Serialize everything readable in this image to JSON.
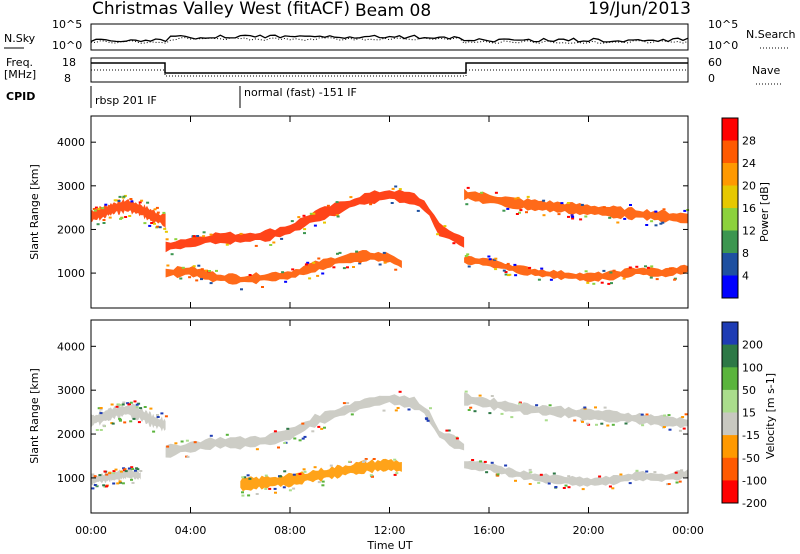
{
  "header": {
    "title": "Christmas Valley West (fitACF)",
    "beam": "Beam 08",
    "date": "19/Jun/2013"
  },
  "status_panels": {
    "nsky_label": "N.Sky",
    "nsky_ticks": [
      "10^5",
      "10^0"
    ],
    "nsearch_label": "N.Search",
    "nsearch_ticks": [
      "10^5",
      "10^0"
    ],
    "freq_label_line1": "Freq.",
    "freq_label_line2": "[MHz]",
    "freq_ticks": [
      "18",
      "8"
    ],
    "nave_label": "Nave",
    "nave_ticks": [
      "60",
      "0"
    ],
    "cpid_label": "CPID",
    "cpid_segments": [
      {
        "label": "rbsp 201 IF",
        "start_hour": 0.0
      },
      {
        "label": "normal (fast) -151 IF",
        "start_hour": 6.0
      }
    ]
  },
  "chart_data": [
    {
      "type": "heatmap",
      "name": "power",
      "ylabel": "Slant Range [km]",
      "yticks": [
        1000,
        2000,
        3000,
        4000
      ],
      "ylim": [
        200,
        4600
      ],
      "xlim": [
        0,
        24
      ],
      "colorbar_label": "Power [dB]",
      "colorbar_ticks": [
        "28",
        "24",
        "20",
        "16",
        "12",
        "8",
        "4"
      ],
      "colorbar_colors": [
        "#ff0000",
        "#ff5a00",
        "#ff9900",
        "#e6c800",
        "#8cd23c",
        "#3c9650",
        "#1e50a0",
        "#0000ff"
      ],
      "bands": [
        {
          "x": [
            0.0,
            0.5,
            1.0,
            1.5,
            2.0,
            2.5,
            3.0
          ],
          "y": [
            2300,
            2400,
            2500,
            2550,
            2450,
            2300,
            2200
          ],
          "w": 260,
          "c": "#ff4000"
        },
        {
          "x": [
            3.0,
            4.0,
            5.0,
            6.0,
            7.0,
            8.0,
            9.0,
            10.0,
            11.0,
            12.0,
            13.0,
            13.5,
            14.0,
            15.0
          ],
          "y": [
            1600,
            1700,
            1800,
            1800,
            1850,
            2000,
            2300,
            2500,
            2700,
            2800,
            2700,
            2500,
            2000,
            1700
          ],
          "w": 230,
          "c": "#ff3000"
        },
        {
          "x": [
            3.0,
            4.0,
            5.0,
            6.0,
            7.0,
            8.0,
            9.0,
            10.0,
            11.0,
            12.0,
            12.5
          ],
          "y": [
            1000,
            1050,
            900,
            850,
            900,
            950,
            1150,
            1300,
            1400,
            1350,
            1200
          ],
          "w": 200,
          "c": "#ff5a00"
        },
        {
          "x": [
            15.0,
            16.0,
            17.0,
            18.0,
            19.0,
            20.0,
            21.0,
            22.0,
            23.0,
            24.0
          ],
          "y": [
            2800,
            2700,
            2600,
            2550,
            2500,
            2450,
            2400,
            2350,
            2300,
            2250
          ],
          "w": 220,
          "c": "#ff5a00"
        },
        {
          "x": [
            15.0,
            16.0,
            17.0,
            18.0,
            19.0,
            20.0,
            21.0,
            22.0,
            23.0,
            24.0
          ],
          "y": [
            1300,
            1250,
            1100,
            1000,
            950,
            900,
            950,
            1050,
            1000,
            1100
          ],
          "w": 170,
          "c": "#ff5a00"
        }
      ]
    },
    {
      "type": "heatmap",
      "name": "velocity",
      "ylabel": "Slant Range [km]",
      "yticks": [
        1000,
        2000,
        3000,
        4000
      ],
      "ylim": [
        200,
        4600
      ],
      "xlim": [
        0,
        24
      ],
      "colorbar_label": "Velocity [m s-1]",
      "colorbar_ticks": [
        "200",
        "100",
        "50",
        "15",
        "-15",
        "-50",
        "-100",
        "-200"
      ],
      "colorbar_colors": [
        "#1e3cb4",
        "#2d7846",
        "#5ab43c",
        "#aadc8c",
        "#c8c8c0",
        "#ff9900",
        "#ff5a00",
        "#ff0000"
      ],
      "bands": [
        {
          "x": [
            0.0,
            0.5,
            1.0,
            1.5,
            2.0,
            2.5,
            3.0
          ],
          "y": [
            2300,
            2400,
            2500,
            2550,
            2450,
            2300,
            2200
          ],
          "w": 260,
          "c": "#c8c8c0"
        },
        {
          "x": [
            3.0,
            4.0,
            5.0,
            6.0,
            7.0,
            8.0,
            9.0,
            10.0,
            11.0,
            12.0,
            13.0,
            13.5,
            14.0,
            15.0
          ],
          "y": [
            1600,
            1700,
            1800,
            1800,
            1850,
            2000,
            2300,
            2500,
            2700,
            2800,
            2700,
            2500,
            2000,
            1700
          ],
          "w": 230,
          "c": "#c8c8c0"
        },
        {
          "x": [
            6.0,
            7.0,
            8.0,
            9.0,
            10.0,
            11.0,
            12.0,
            12.5
          ],
          "y": [
            850,
            900,
            950,
            1050,
            1150,
            1250,
            1300,
            1250
          ],
          "w": 240,
          "c": "#ff9900"
        },
        {
          "x": [
            15.0,
            16.0,
            17.0,
            18.0,
            19.0,
            20.0,
            21.0,
            22.0,
            23.0,
            24.0
          ],
          "y": [
            2800,
            2700,
            2600,
            2550,
            2500,
            2450,
            2400,
            2350,
            2300,
            2250
          ],
          "w": 220,
          "c": "#c8c8c0"
        },
        {
          "x": [
            15.0,
            16.0,
            17.0,
            18.0,
            19.0,
            20.0,
            21.0,
            22.0,
            23.0,
            24.0
          ],
          "y": [
            1300,
            1250,
            1100,
            1000,
            950,
            900,
            950,
            1050,
            1000,
            1100
          ],
          "w": 170,
          "c": "#c8c8c0"
        },
        {
          "x": [
            0.0,
            0.5,
            1.0,
            1.5,
            2.0
          ],
          "y": [
            950,
            1000,
            1050,
            1100,
            1050
          ],
          "w": 180,
          "c": "#c8c8c0"
        }
      ]
    }
  ],
  "xaxis": {
    "label": "Time UT",
    "ticks": [
      "00:00",
      "04:00",
      "08:00",
      "12:00",
      "16:00",
      "20:00",
      "00:00"
    ]
  }
}
